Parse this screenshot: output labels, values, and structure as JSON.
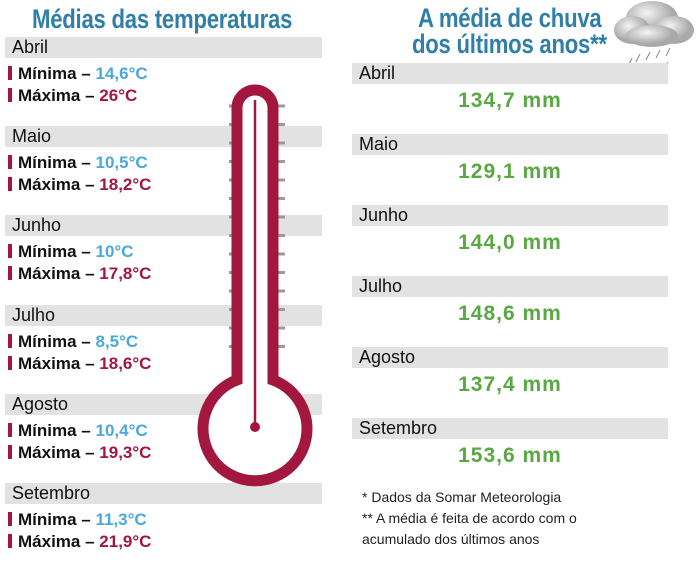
{
  "temperature": {
    "title": "Médias das temperaturas",
    "min_label": "Mínima –",
    "max_label": "Máxima –",
    "months": [
      {
        "name": "Abril",
        "min": "14,6°C",
        "max": "26°C"
      },
      {
        "name": "Maio",
        "min": "10,5°C",
        "max": "18,2°C"
      },
      {
        "name": "Junho",
        "min": "10°C",
        "max": "17,8°C"
      },
      {
        "name": "Julho",
        "min": "8,5°C",
        "max": "18,6°C"
      },
      {
        "name": "Agosto",
        "min": "10,4°C",
        "max": "19,3°C"
      },
      {
        "name": "Setembro",
        "min": "11,3°C",
        "max": "21,9°C"
      }
    ]
  },
  "rain": {
    "title_line1": "A média de chuva",
    "title_line2": "dos últimos anos**",
    "months": [
      {
        "name": "Abril",
        "value": "134,7 mm"
      },
      {
        "name": "Maio",
        "value": "129,1 mm"
      },
      {
        "name": "Junho",
        "value": "144,0 mm"
      },
      {
        "name": "Julho",
        "value": "148,6 mm"
      },
      {
        "name": "Agosto",
        "value": "137,4 mm"
      },
      {
        "name": "Setembro",
        "value": "153,6 mm"
      }
    ]
  },
  "notes": [
    "* Dados da Somar Meteorologia",
    "** A média é feita de acordo com o",
    "acumulado dos últimos anos"
  ],
  "colors": {
    "title": "#2f7fa8",
    "min": "#4aa8dc",
    "max": "#a3173f",
    "rain": "#5aa843",
    "bar": "#e2e2e2"
  }
}
